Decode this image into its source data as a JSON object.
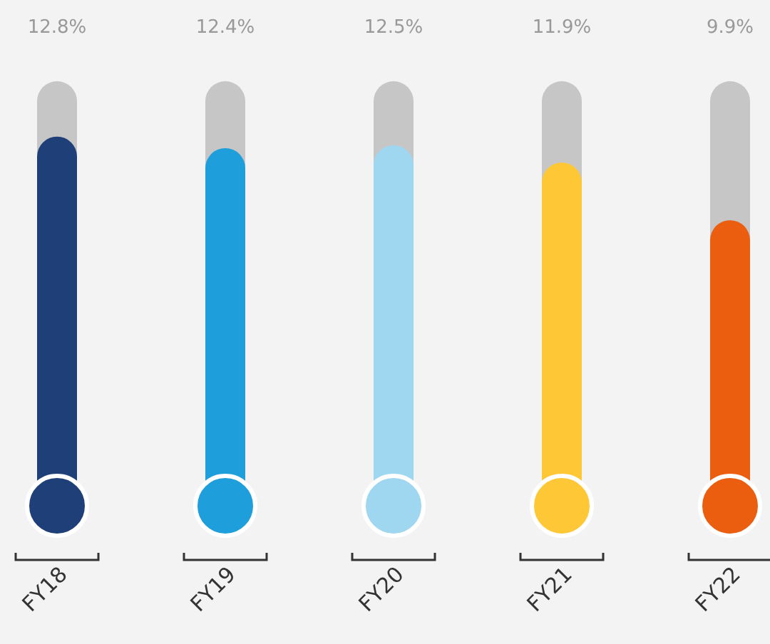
{
  "chart_data": {
    "type": "bar",
    "categories": [
      "FY18",
      "FY19",
      "FY20",
      "FY21",
      "FY22"
    ],
    "values": [
      12.8,
      12.4,
      12.5,
      11.9,
      9.9
    ],
    "colors": [
      "#1e3f78",
      "#1e9edb",
      "#9fd6f0",
      "#fdc736",
      "#eb5e10"
    ],
    "value_labels": [
      "12.8%",
      "12.4%",
      "12.5%",
      "11.9%",
      "9.9%"
    ]
  }
}
